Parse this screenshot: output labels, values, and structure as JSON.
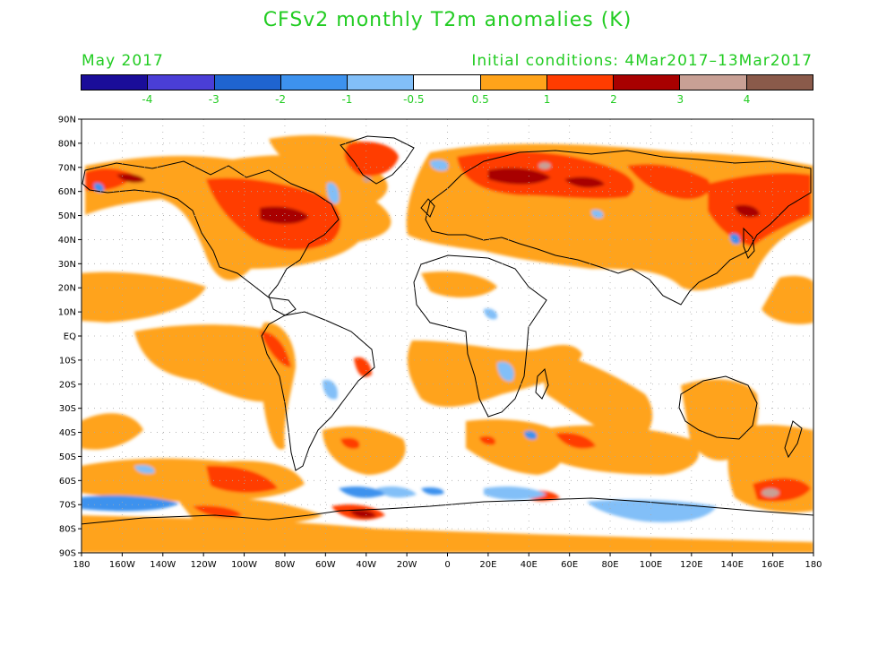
{
  "title": "CFSv2 monthly T2m anomalies (K)",
  "subtitle_left": "May 2017",
  "subtitle_right": "Initial conditions: 4Mar2017–13Mar2017",
  "colorbar": {
    "colors": [
      "#1a0d99",
      "#4a3ed6",
      "#1f64d0",
      "#3d92ee",
      "#82bff8",
      "#ffffff",
      "#ffa31a",
      "#ff3c00",
      "#a80000",
      "#c8a095",
      "#8a5a4a"
    ],
    "labels": [
      "-4",
      "-3",
      "-2",
      "-1",
      "-0.5",
      "0.5",
      "1",
      "2",
      "3",
      "4"
    ]
  },
  "map": {
    "lat_labels": [
      "90N",
      "80N",
      "70N",
      "60N",
      "50N",
      "40N",
      "30N",
      "20N",
      "10N",
      "EQ",
      "10S",
      "20S",
      "30S",
      "40S",
      "50S",
      "60S",
      "70S",
      "80S",
      "90S"
    ],
    "lon_labels": [
      "180",
      "160W",
      "140W",
      "120W",
      "100W",
      "80W",
      "60W",
      "40W",
      "20W",
      "0",
      "20E",
      "40E",
      "60E",
      "80E",
      "100E",
      "120E",
      "140E",
      "160E",
      "180"
    ]
  }
}
